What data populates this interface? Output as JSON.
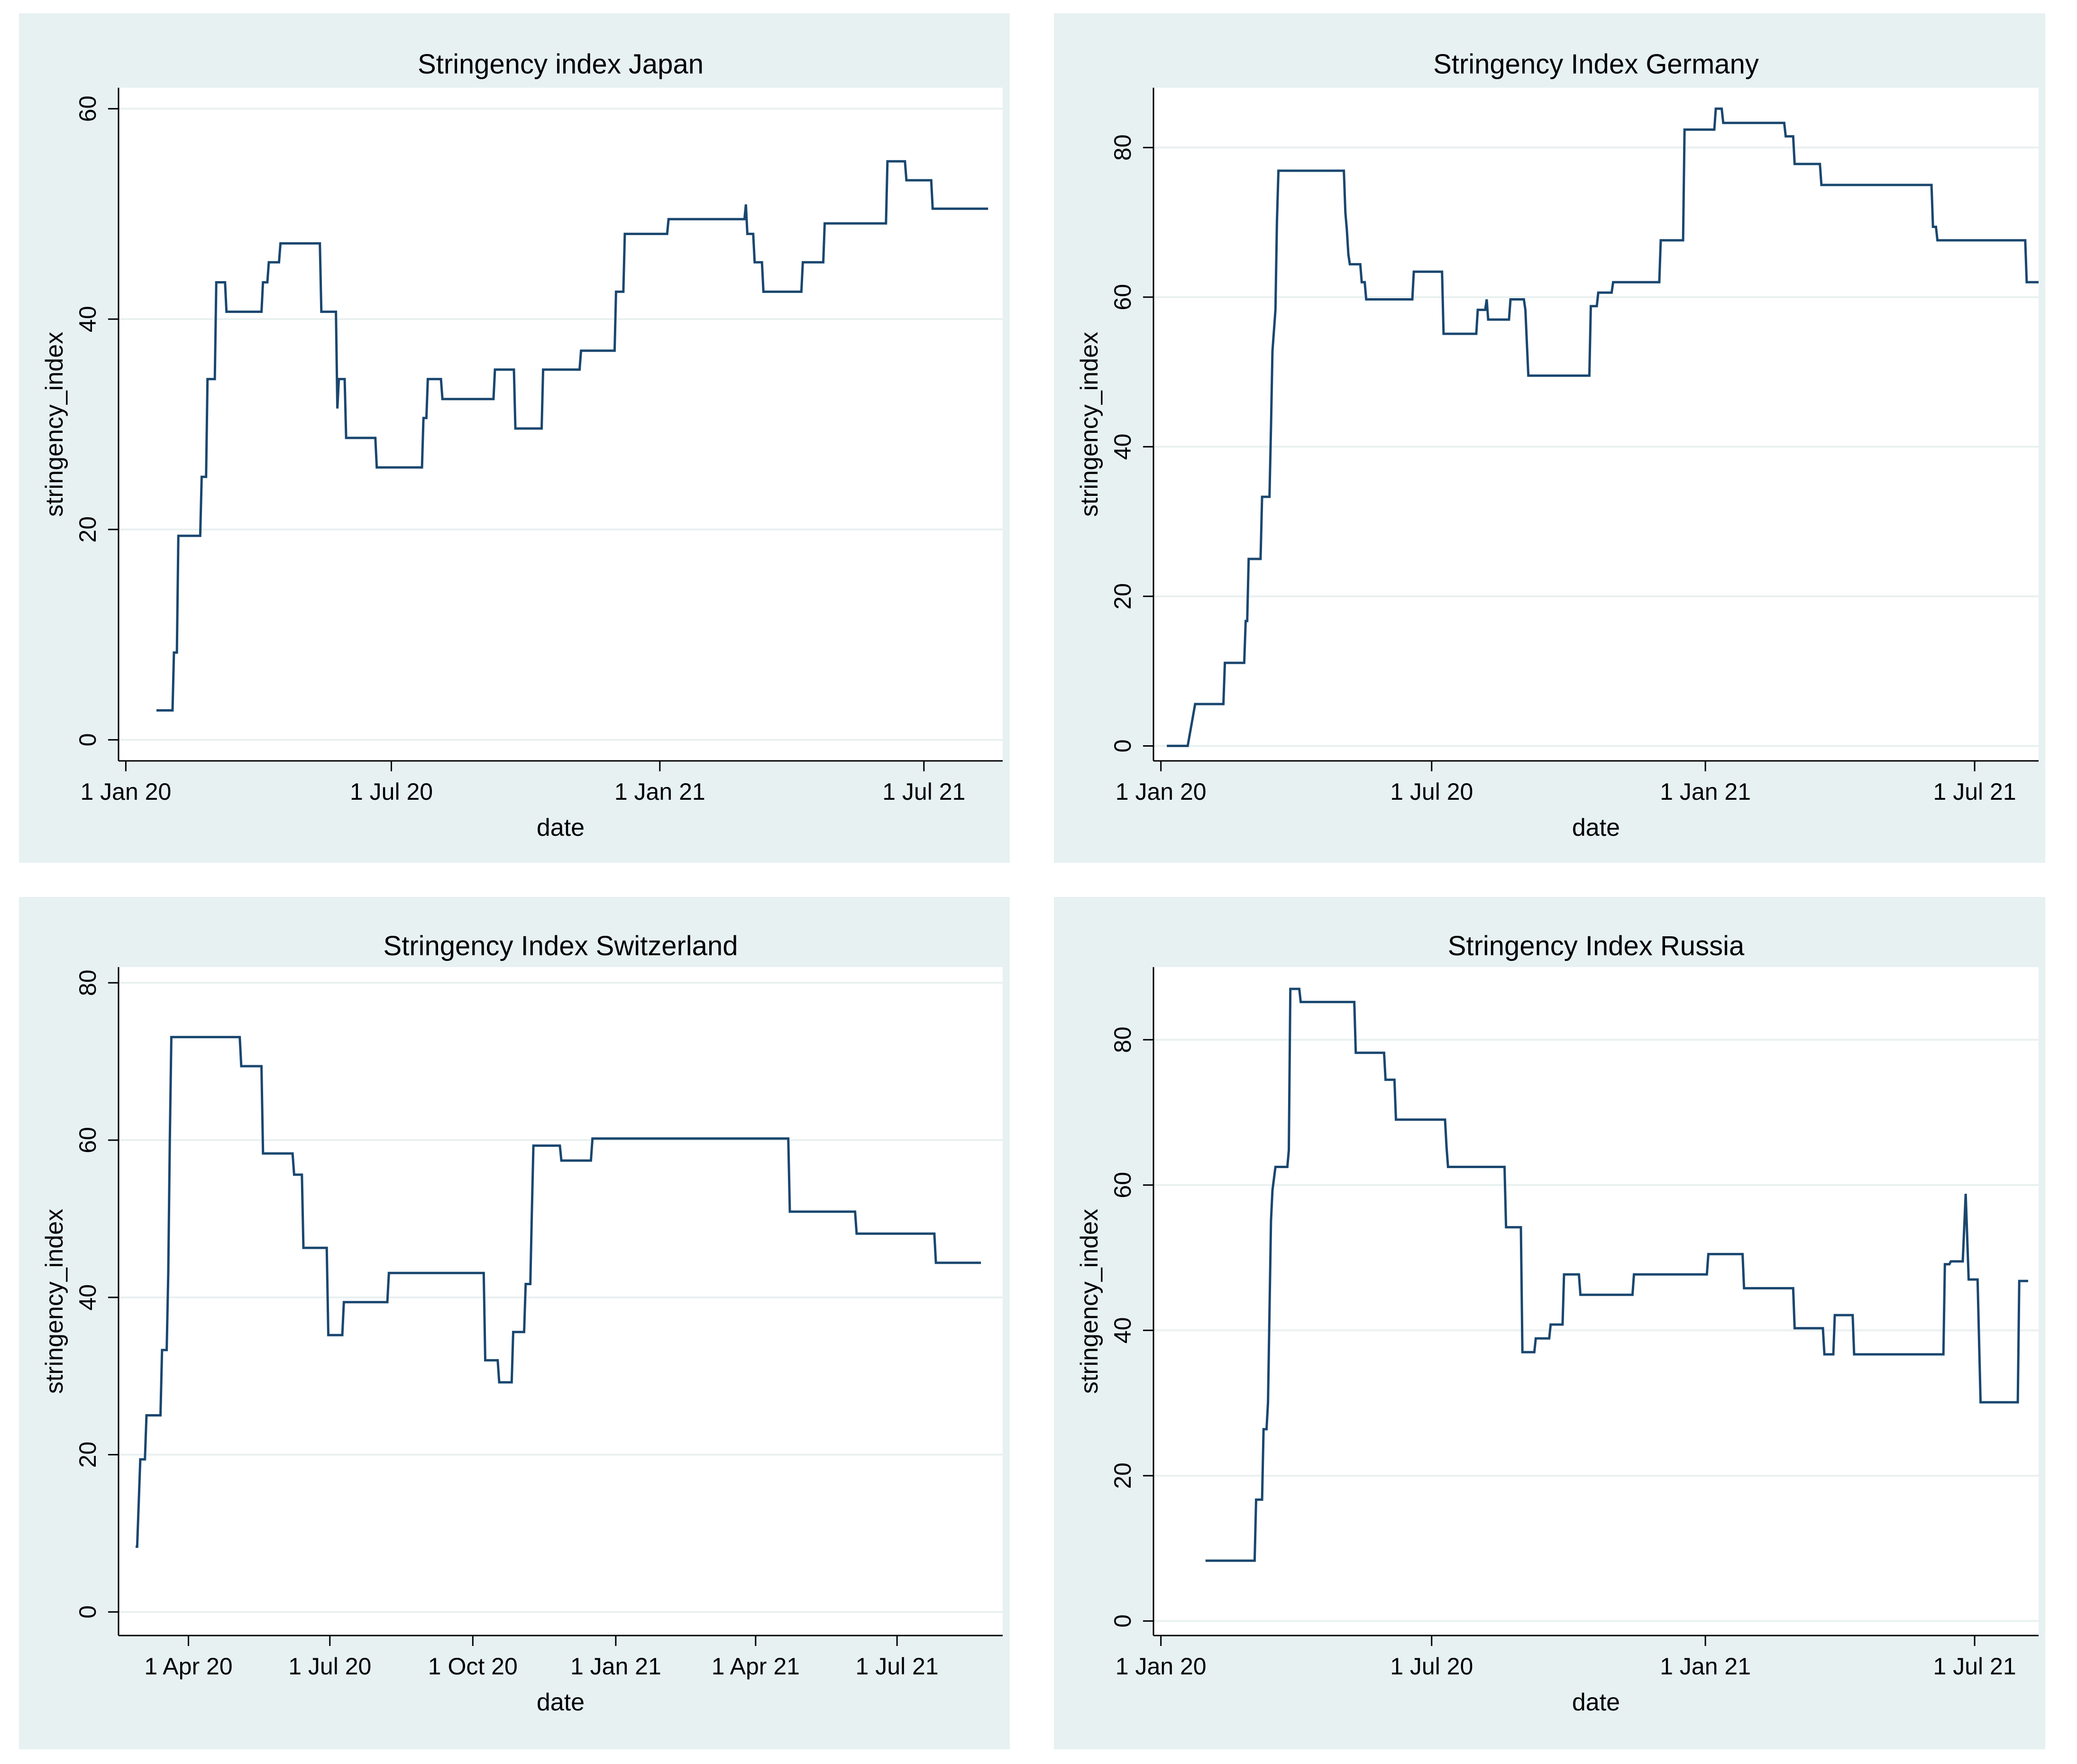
{
  "figure": {
    "colors": {
      "panel_bg": "#e7f1f2",
      "plot_bg": "#ffffff",
      "grid": "#e9f0f0",
      "line": "#1a476f"
    }
  },
  "chart_data": [
    {
      "type": "line",
      "title": "Stringency index Japan",
      "xlabel": "date",
      "ylabel": "stringency_index",
      "grid": true,
      "xlim": [
        -5,
        601
      ],
      "ylim": [
        -2,
        62
      ],
      "xticks": [
        {
          "value": 0,
          "label": "1 Jan 20"
        },
        {
          "value": 182,
          "label": "1 Jul 20"
        },
        {
          "value": 366,
          "label": "1 Jan 21"
        },
        {
          "value": 547,
          "label": "1 Jul 21"
        }
      ],
      "yticks": [
        0,
        20,
        40,
        60
      ],
      "x_units": "days since 1 Jan 2020",
      "series": [
        {
          "name": "stringency_index",
          "points": [
            [
              21,
              2.8
            ],
            [
              32,
              2.8
            ],
            [
              33,
              8.3
            ],
            [
              35,
              8.3
            ],
            [
              36,
              19.4
            ],
            [
              51,
              19.4
            ],
            [
              52,
              25
            ],
            [
              55,
              25
            ],
            [
              56,
              34.3
            ],
            [
              61,
              34.3
            ],
            [
              62,
              43.5
            ],
            [
              68,
              43.5
            ],
            [
              69,
              40.7
            ],
            [
              93,
              40.7
            ],
            [
              94,
              43.5
            ],
            [
              97,
              43.5
            ],
            [
              98,
              45.4
            ],
            [
              105,
              45.4
            ],
            [
              106,
              47.2
            ],
            [
              133,
              47.2
            ],
            [
              134,
              40.7
            ],
            [
              144,
              40.7
            ],
            [
              145,
              31.5
            ],
            [
              146,
              34.3
            ],
            [
              150,
              34.3
            ],
            [
              151,
              28.7
            ],
            [
              171,
              28.7
            ],
            [
              172,
              25.9
            ],
            [
              203,
              25.9
            ],
            [
              204,
              30.6
            ],
            [
              206,
              30.6
            ],
            [
              207,
              34.3
            ],
            [
              216,
              34.3
            ],
            [
              217,
              32.4
            ],
            [
              252,
              32.4
            ],
            [
              253,
              35.2
            ],
            [
              266,
              35.2
            ],
            [
              267,
              29.6
            ],
            [
              285,
              29.6
            ],
            [
              286,
              35.2
            ],
            [
              311,
              35.2
            ],
            [
              312,
              37
            ],
            [
              335,
              37
            ],
            [
              336,
              42.6
            ],
            [
              341,
              42.6
            ],
            [
              342,
              48.1
            ],
            [
              371,
              48.1
            ],
            [
              372,
              49.5
            ],
            [
              424,
              49.5
            ],
            [
              425,
              50.9
            ],
            [
              426,
              48.1
            ],
            [
              430,
              48.1
            ],
            [
              431,
              45.4
            ],
            [
              436,
              45.4
            ],
            [
              437,
              42.6
            ],
            [
              463,
              42.6
            ],
            [
              464,
              45.4
            ],
            [
              478,
              45.4
            ],
            [
              479,
              49.1
            ],
            [
              521,
              49.1
            ],
            [
              522,
              55
            ],
            [
              534,
              55
            ],
            [
              535,
              53.2
            ],
            [
              552,
              53.2
            ],
            [
              553,
              50.5
            ],
            [
              591,
              50.5
            ]
          ]
        }
      ]
    },
    {
      "type": "line",
      "title": "Stringency Index Germany",
      "xlabel": "date",
      "ylabel": "stringency_index",
      "grid": true,
      "xlim": [
        -5,
        590
      ],
      "ylim": [
        -2,
        88
      ],
      "xticks": [
        {
          "value": 0,
          "label": "1 Jan 20"
        },
        {
          "value": 182,
          "label": "1 Jul 20"
        },
        {
          "value": 366,
          "label": "1 Jan 21"
        },
        {
          "value": 547,
          "label": "1 Jul 21"
        }
      ],
      "yticks": [
        0,
        20,
        40,
        60,
        80
      ],
      "x_units": "days since 1 Jan 2020",
      "series": [
        {
          "name": "stringency_index",
          "points": [
            [
              4,
              0
            ],
            [
              18,
              0
            ],
            [
              23,
              5.6
            ],
            [
              42,
              5.6
            ],
            [
              43,
              11.1
            ],
            [
              56,
              11.1
            ],
            [
              57,
              16.7
            ],
            [
              58,
              16.7
            ],
            [
              59,
              25
            ],
            [
              67,
              25
            ],
            [
              68,
              33.3
            ],
            [
              73,
              33.3
            ],
            [
              74,
              42.6
            ],
            [
              75,
              52.8
            ],
            [
              77,
              58.3
            ],
            [
              78,
              70
            ],
            [
              79,
              76.9
            ],
            [
              123,
              76.9
            ],
            [
              124,
              71.3
            ],
            [
              125,
              69
            ],
            [
              126,
              65.7
            ],
            [
              127,
              64.4
            ],
            [
              134,
              64.4
            ],
            [
              135,
              62
            ],
            [
              137,
              62
            ],
            [
              138,
              59.7
            ],
            [
              169,
              59.7
            ],
            [
              170,
              63.4
            ],
            [
              189,
              63.4
            ],
            [
              190,
              55.1
            ],
            [
              212,
              55.1
            ],
            [
              213,
              58.3
            ],
            [
              218,
              58.3
            ],
            [
              219,
              59.7
            ],
            [
              220,
              57
            ],
            [
              234,
              57
            ],
            [
              235,
              59.7
            ],
            [
              244,
              59.7
            ],
            [
              245,
              58.3
            ],
            [
              247,
              49.5
            ],
            [
              288,
              49.5
            ],
            [
              289,
              58.8
            ],
            [
              293,
              58.8
            ],
            [
              294,
              60.6
            ],
            [
              303,
              60.6
            ],
            [
              304,
              62
            ],
            [
              335,
              62
            ],
            [
              336,
              67.6
            ],
            [
              351,
              67.6
            ],
            [
              352,
              82.4
            ],
            [
              372,
              82.4
            ],
            [
              373,
              85.2
            ],
            [
              377,
              85.2
            ],
            [
              378,
              83.3
            ],
            [
              419,
              83.3
            ],
            [
              420,
              81.5
            ],
            [
              425,
              81.5
            ],
            [
              426,
              77.8
            ],
            [
              443,
              77.8
            ],
            [
              444,
              75
            ],
            [
              518,
              75
            ],
            [
              519,
              69.4
            ],
            [
              521,
              69.4
            ],
            [
              522,
              67.6
            ],
            [
              581,
              67.6
            ],
            [
              582,
              62
            ],
            [
              590,
              62
            ]
          ]
        }
      ]
    },
    {
      "type": "line",
      "title": "Stringency Index Switzerland",
      "xlabel": "date",
      "ylabel": "stringency_index",
      "grid": true,
      "xlim": [
        46,
        615
      ],
      "ylim": [
        -3,
        82
      ],
      "xticks": [
        {
          "value": 91,
          "label": "1 Apr 20"
        },
        {
          "value": 182,
          "label": "1 Jul 20"
        },
        {
          "value": 274,
          "label": "1 Oct 20"
        },
        {
          "value": 366,
          "label": "1 Jan 21"
        },
        {
          "value": 456,
          "label": "1 Apr 21"
        },
        {
          "value": 547,
          "label": "1 Jul 21"
        }
      ],
      "yticks": [
        0,
        20,
        40,
        60,
        80
      ],
      "x_units": "days since 1 Jan 2020",
      "series": [
        {
          "name": "stringency_index",
          "points": [
            [
              57,
              8.3
            ],
            [
              58,
              8.3
            ],
            [
              60,
              19.4
            ],
            [
              63,
              19.4
            ],
            [
              64,
              25
            ],
            [
              73,
              25
            ],
            [
              74,
              33.3
            ],
            [
              77,
              33.3
            ],
            [
              78,
              43
            ],
            [
              79,
              60
            ],
            [
              80,
              73.1
            ],
            [
              124,
              73.1
            ],
            [
              125,
              69.4
            ],
            [
              138,
              69.4
            ],
            [
              139,
              58.3
            ],
            [
              158,
              58.3
            ],
            [
              159,
              55.6
            ],
            [
              164,
              55.6
            ],
            [
              165,
              46.3
            ],
            [
              180,
              46.3
            ],
            [
              181,
              35.2
            ],
            [
              190,
              35.2
            ],
            [
              191,
              39.4
            ],
            [
              219,
              39.4
            ],
            [
              220,
              43.1
            ],
            [
              281,
              43.1
            ],
            [
              282,
              32
            ],
            [
              290,
              32
            ],
            [
              291,
              29.2
            ],
            [
              299,
              29.2
            ],
            [
              300,
              35.6
            ],
            [
              307,
              35.6
            ],
            [
              308,
              41.7
            ],
            [
              311,
              41.7
            ],
            [
              312,
              51
            ],
            [
              313,
              59.3
            ],
            [
              330,
              59.3
            ],
            [
              331,
              57.4
            ],
            [
              350,
              57.4
            ],
            [
              351,
              60.2
            ],
            [
              477,
              60.2
            ],
            [
              478,
              50.9
            ],
            [
              520,
              50.9
            ],
            [
              521,
              48.1
            ],
            [
              571,
              48.1
            ],
            [
              572,
              44.4
            ],
            [
              601,
              44.4
            ]
          ]
        }
      ]
    },
    {
      "type": "line",
      "title": "Stringency Index Russia",
      "xlabel": "date",
      "ylabel": "stringency_index",
      "grid": true,
      "xlim": [
        -5,
        590
      ],
      "ylim": [
        -2,
        90
      ],
      "xticks": [
        {
          "value": 0,
          "label": "1 Jan 20"
        },
        {
          "value": 182,
          "label": "1 Jul 20"
        },
        {
          "value": 366,
          "label": "1 Jan 21"
        },
        {
          "value": 547,
          "label": "1 Jul 21"
        }
      ],
      "yticks": [
        0,
        20,
        40,
        60,
        80
      ],
      "x_units": "days since 1 Jan 2020",
      "series": [
        {
          "name": "stringency_index",
          "points": [
            [
              30,
              8.3
            ],
            [
              63,
              8.3
            ],
            [
              64,
              16.7
            ],
            [
              68,
              16.7
            ],
            [
              69,
              26.4
            ],
            [
              71,
              26.4
            ],
            [
              72,
              30.1
            ],
            [
              74,
              55.1
            ],
            [
              75,
              59.3
            ],
            [
              77,
              62.5
            ],
            [
              85,
              62.5
            ],
            [
              86,
              64.8
            ],
            [
              87,
              87
            ],
            [
              93,
              87
            ],
            [
              94,
              85.2
            ],
            [
              130,
              85.2
            ],
            [
              131,
              78.2
            ],
            [
              150,
              78.2
            ],
            [
              151,
              74.5
            ],
            [
              157,
              74.5
            ],
            [
              158,
              69
            ],
            [
              191,
              69
            ],
            [
              192,
              65.3
            ],
            [
              193,
              62.5
            ],
            [
              231,
              62.5
            ],
            [
              232,
              54.2
            ],
            [
              242,
              54.2
            ],
            [
              243,
              37
            ],
            [
              251,
              37
            ],
            [
              252,
              38.9
            ],
            [
              261,
              38.9
            ],
            [
              262,
              40.8
            ],
            [
              270,
              40.8
            ],
            [
              271,
              47.7
            ],
            [
              281,
              47.7
            ],
            [
              282,
              44.9
            ],
            [
              317,
              44.9
            ],
            [
              318,
              47.7
            ],
            [
              367,
              47.7
            ],
            [
              368,
              50.5
            ],
            [
              391,
              50.5
            ],
            [
              392,
              45.8
            ],
            [
              425,
              45.8
            ],
            [
              426,
              40.3
            ],
            [
              445,
              40.3
            ],
            [
              446,
              36.7
            ],
            [
              452,
              36.7
            ],
            [
              453,
              42.1
            ],
            [
              465,
              42.1
            ],
            [
              466,
              36.7
            ],
            [
              526,
              36.7
            ],
            [
              527,
              49.1
            ],
            [
              530,
              49.1
            ],
            [
              531,
              49.5
            ],
            [
              539,
              49.5
            ],
            [
              541,
              58.8
            ],
            [
              543,
              47
            ],
            [
              549,
              47
            ],
            [
              551,
              30.1
            ],
            [
              576,
              30.1
            ],
            [
              577,
              46.8
            ],
            [
              583,
              46.8
            ]
          ]
        }
      ]
    }
  ]
}
